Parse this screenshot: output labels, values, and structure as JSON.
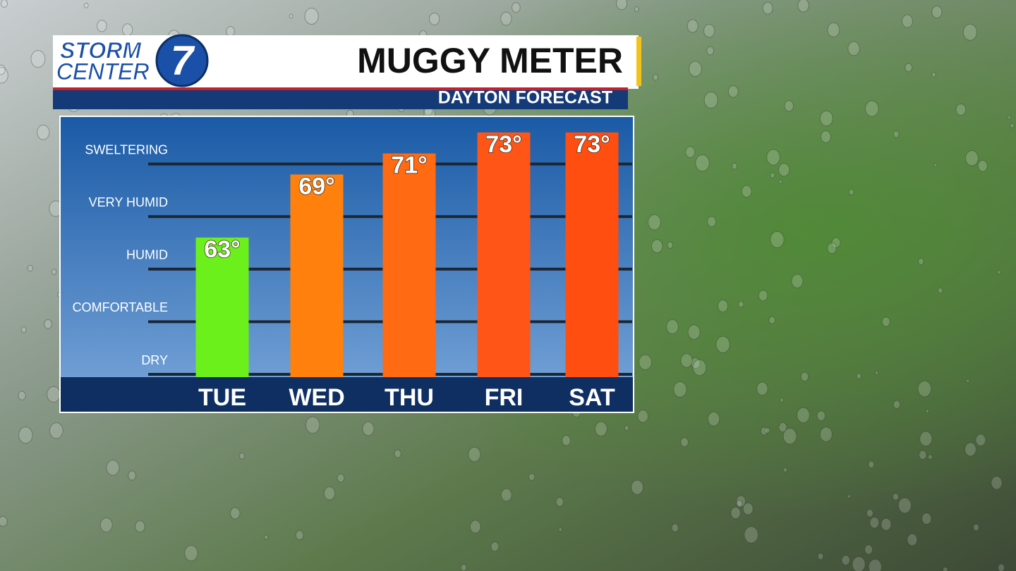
{
  "logo": {
    "line1": "STORM",
    "line2": "CENTER",
    "number": "7"
  },
  "chart_data": {
    "type": "bar",
    "title": "MUGGY METER",
    "subtitle": "DAYTON FORECAST",
    "categories": [
      "TUE",
      "WED",
      "THU",
      "FRI",
      "SAT"
    ],
    "values": [
      63,
      69,
      71,
      73,
      73
    ],
    "value_labels": [
      "63°",
      "69°",
      "71°",
      "73°",
      "73°"
    ],
    "colors": [
      "#6cf01c",
      "#ff800c",
      "#ff6a12",
      "#ff5618",
      "#ff4e10"
    ],
    "ylim": [
      50,
      75
    ],
    "yticks": [
      {
        "value": 50,
        "label": "DRY"
      },
      {
        "value": 55,
        "label": "COMFORTABLE"
      },
      {
        "value": 60,
        "label": "HUMID"
      },
      {
        "value": 65,
        "label": "VERY HUMID"
      },
      {
        "value": 70,
        "label": "SWELTERING"
      }
    ],
    "grid": true
  }
}
